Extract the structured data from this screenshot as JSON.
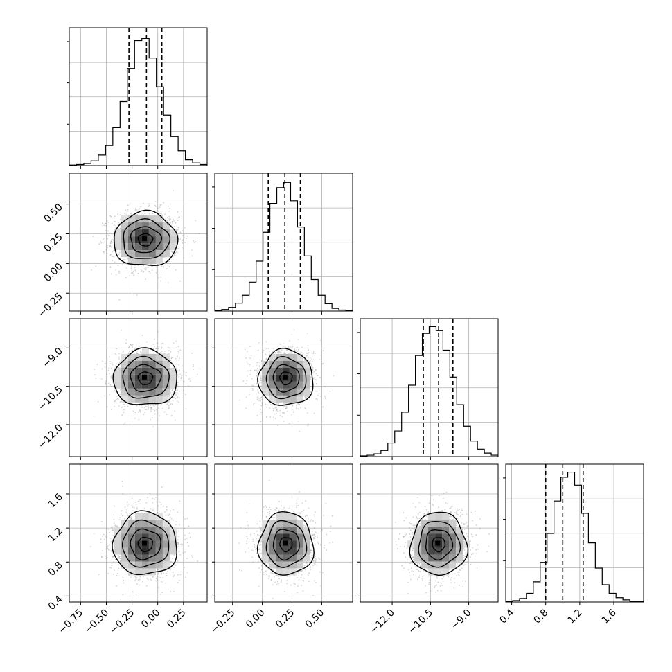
{
  "chart_data": {
    "type": "corner",
    "parameters": 4,
    "grid": true,
    "colors": {
      "contour": "#000000",
      "quantile": "#000000",
      "points": "#9a9a9a",
      "grid": "#b0b0b0"
    },
    "params": [
      {
        "index": 0,
        "range": [
          -0.86,
          0.48
        ],
        "ticks": [
          -0.75,
          -0.5,
          -0.25,
          0.0,
          0.25
        ],
        "tick_labels": [
          "−0.75",
          "−0.50",
          "−0.25",
          "0.00",
          "0.25"
        ],
        "mean": -0.12,
        "sd": 0.155,
        "quantiles": [
          -0.28,
          -0.11,
          0.04
        ],
        "hist_counts": [
          1,
          2,
          4,
          9,
          20,
          38,
          72,
          122,
          185,
          238,
          242,
          205,
          150,
          96,
          55,
          28,
          11,
          5,
          2
        ],
        "hist_max": 250
      },
      {
        "index": 1,
        "range": [
          -0.4,
          0.76
        ],
        "ticks": [
          -0.25,
          0.0,
          0.25,
          0.5
        ],
        "tick_labels": [
          "−0.25",
          "0.00",
          "0.25",
          "0.50"
        ],
        "mean": 0.2,
        "sd": 0.115,
        "quantiles": [
          0.05,
          0.19,
          0.32
        ],
        "hist_counts": [
          1,
          3,
          7,
          15,
          30,
          55,
          95,
          150,
          205,
          235,
          245,
          210,
          160,
          105,
          60,
          30,
          14,
          5,
          2,
          1
        ],
        "hist_max": 250
      },
      {
        "index": 2,
        "range": [
          -13.25,
          -7.85
        ],
        "ticks": [
          -12.0,
          -10.5,
          -9.0
        ],
        "tick_labels": [
          "−12.0",
          "−10.5",
          "−9.0"
        ],
        "mean": -10.18,
        "sd": 0.55,
        "quantiles": [
          -10.78,
          -10.18,
          -9.62
        ],
        "hist_counts": [
          1,
          2,
          4,
          9,
          20,
          38,
          66,
          106,
          150,
          183,
          193,
          187,
          158,
          118,
          77,
          45,
          23,
          11,
          5,
          2
        ],
        "hist_max": 195
      },
      {
        "index": 3,
        "range": [
          0.33,
          1.95
        ],
        "ticks": [
          0.4,
          0.8,
          1.2,
          1.6
        ],
        "tick_labels": [
          "0.4",
          "0.8",
          "1.2",
          "1.6"
        ],
        "mean": 1.01,
        "sd": 0.185,
        "quantiles": [
          0.8,
          1.0,
          1.24
        ],
        "hist_counts": [
          1,
          2,
          5,
          12,
          28,
          55,
          95,
          140,
          173,
          180,
          162,
          123,
          82,
          47,
          24,
          12,
          6,
          3,
          1,
          1
        ],
        "hist_max": 182
      }
    ]
  }
}
